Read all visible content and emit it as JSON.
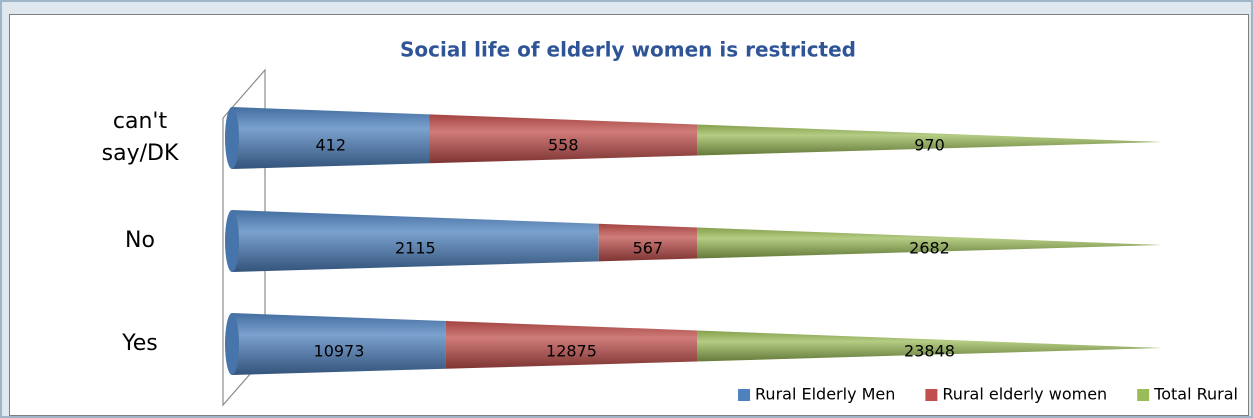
{
  "chart_data": {
    "type": "bar",
    "orientation": "horizontal",
    "stacking": "percent",
    "shape": "cone",
    "title": "Social life of elderly women is restricted",
    "categories": [
      "Yes",
      "No",
      "can't say/DK"
    ],
    "series": [
      {
        "name": "Rural Elderly Men",
        "color": "#4f81bd",
        "values": [
          10973,
          2115,
          412
        ]
      },
      {
        "name": "Rural elderly women",
        "color": "#c0504d",
        "values": [
          12875,
          567,
          558
        ]
      },
      {
        "name": "Total Rural",
        "color": "#9bbb59",
        "values": [
          23848,
          2682,
          970
        ]
      }
    ],
    "legend": "bottom-right"
  }
}
